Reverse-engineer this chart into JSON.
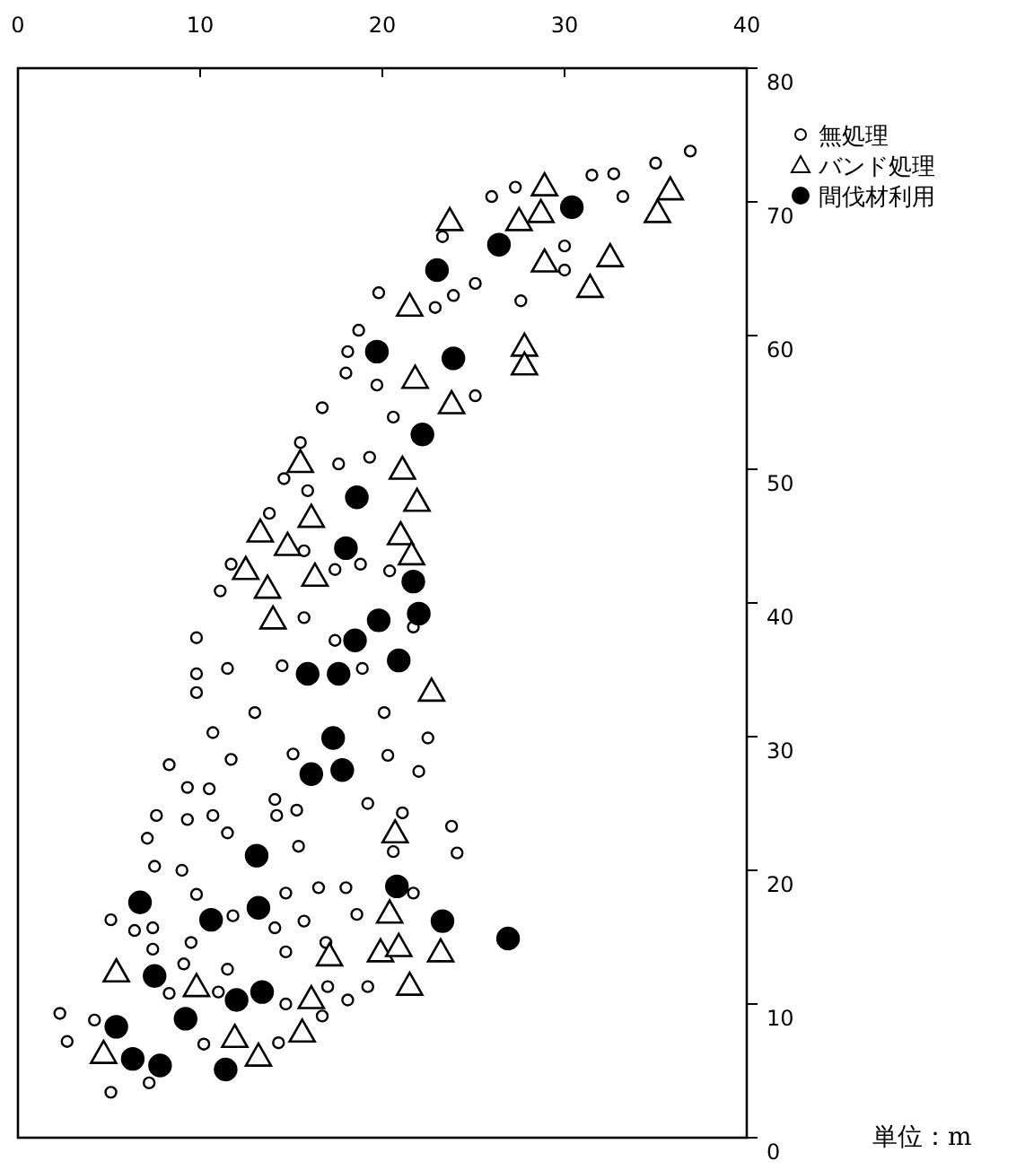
{
  "chart_data": {
    "type": "scatter",
    "xlim": [
      0,
      40
    ],
    "xticks": [
      0,
      10,
      20,
      30,
      40
    ],
    "ylim": [
      0,
      80
    ],
    "yticks": [
      0,
      10,
      20,
      30,
      40,
      50,
      60,
      70,
      80
    ],
    "legend": "top right",
    "grid": false,
    "annotations": [
      "単位：m"
    ],
    "series": [
      {
        "name": "無処理",
        "color": "#ffffff",
        "marker": "circle",
        "x": [
          36.9,
          35.0,
          31.5,
          32.7,
          33.2,
          26.0,
          27.3,
          23.3,
          30.0,
          30.0,
          25.1,
          23.9,
          22.9,
          19.8,
          27.6,
          18.7,
          18.1,
          18.0,
          19.7,
          16.7,
          20.6,
          25.1,
          15.5,
          17.6,
          19.3,
          14.6,
          15.9,
          13.8,
          15.7,
          11.7,
          17.4,
          18.8,
          20.4,
          11.1,
          15.7,
          9.8,
          17.4,
          21.7,
          9.8,
          11.5,
          14.5,
          18.9,
          9.8,
          13.0,
          20.1,
          10.7,
          22.5,
          8.3,
          11.7,
          15.1,
          20.3,
          22.0,
          9.3,
          10.5,
          14.1,
          19.2,
          7.6,
          9.3,
          10.7,
          14.2,
          15.3,
          21.1,
          7.1,
          11.5,
          23.8,
          15.4,
          20.6,
          24.1,
          7.5,
          9.0,
          9.8,
          14.7,
          16.5,
          18.0,
          21.7,
          5.1,
          6.4,
          7.4,
          11.8,
          14.1,
          15.7,
          18.6,
          7.4,
          9.5,
          16.9,
          14.7,
          9.1,
          11.5,
          8.3,
          11.0,
          14.7,
          17.0,
          18.1,
          19.2,
          16.7,
          2.3,
          4.2,
          2.7,
          10.2,
          14.3,
          7.2,
          5.1
        ],
        "values": [
          73.8,
          72.9,
          72.0,
          72.1,
          70.4,
          70.4,
          71.1,
          67.4,
          66.7,
          64.9,
          63.9,
          63.0,
          62.1,
          63.2,
          62.6,
          60.4,
          58.8,
          57.2,
          56.3,
          54.6,
          53.9,
          55.5,
          52.0,
          50.4,
          50.9,
          49.3,
          48.4,
          46.7,
          43.9,
          42.9,
          42.5,
          42.9,
          42.4,
          40.9,
          38.9,
          37.4,
          37.2,
          38.2,
          34.7,
          35.1,
          35.3,
          35.1,
          33.3,
          31.8,
          31.8,
          30.3,
          29.9,
          27.9,
          28.3,
          28.7,
          28.6,
          27.4,
          26.2,
          26.1,
          25.3,
          25.0,
          24.1,
          23.8,
          24.1,
          24.1,
          24.5,
          24.3,
          22.4,
          22.8,
          23.3,
          21.8,
          21.4,
          21.3,
          20.3,
          20.0,
          18.2,
          18.3,
          18.7,
          18.7,
          18.3,
          16.3,
          15.5,
          15.7,
          16.6,
          15.7,
          16.2,
          16.7,
          14.1,
          14.6,
          14.6,
          13.9,
          13.0,
          12.6,
          10.8,
          10.9,
          10.0,
          11.3,
          10.3,
          11.3,
          9.1,
          9.3,
          8.8,
          7.2,
          7.0,
          7.1,
          4.1,
          3.4
        ]
      },
      {
        "name": "バンド処理",
        "color": "#ffffff",
        "marker": "triangle",
        "x": [
          28.9,
          35.8,
          23.7,
          27.5,
          28.7,
          35.1,
          28.9,
          32.5,
          31.4,
          21.5,
          27.8,
          27.8,
          21.8,
          23.8,
          15.5,
          21.1,
          21.9,
          16.1,
          13.3,
          14.8,
          21.0,
          21.6,
          12.5,
          16.3,
          13.7,
          14.0,
          22.7,
          20.7,
          20.4,
          17.1,
          19.9,
          20.9,
          23.2,
          5.4,
          9.8,
          16.1,
          21.5,
          4.7,
          11.9,
          15.6,
          13.2
        ],
        "values": [
          71.2,
          70.9,
          68.6,
          68.6,
          69.2,
          69.2,
          65.5,
          65.9,
          63.6,
          62.2,
          59.2,
          57.8,
          56.8,
          54.9,
          50.5,
          50.0,
          47.6,
          46.4,
          45.3,
          44.3,
          45.1,
          43.6,
          42.5,
          42.0,
          41.1,
          38.8,
          33.4,
          22.8,
          16.8,
          13.6,
          13.9,
          14.3,
          13.9,
          12.4,
          11.3,
          10.4,
          11.4,
          6.3,
          7.5,
          7.9,
          6.1
        ]
      },
      {
        "name": "間伐材利用",
        "color": "#000000",
        "marker": "circle",
        "x": [
          30.4,
          26.4,
          23.0,
          19.7,
          23.9,
          22.2,
          18.6,
          18.0,
          21.7,
          19.8,
          22.0,
          18.5,
          15.9,
          17.6,
          20.9,
          17.3,
          16.1,
          17.8,
          13.1,
          6.7,
          10.6,
          13.2,
          20.8,
          23.3,
          26.9,
          7.5,
          12.0,
          13.4,
          5.4,
          9.2,
          6.3,
          7.8,
          11.4
        ],
        "values": [
          69.6,
          66.8,
          64.9,
          58.8,
          58.3,
          52.6,
          47.9,
          44.1,
          41.6,
          38.7,
          39.2,
          37.2,
          34.7,
          34.7,
          35.7,
          29.9,
          27.2,
          27.5,
          21.1,
          17.6,
          16.3,
          17.2,
          18.8,
          16.2,
          14.9,
          12.1,
          10.3,
          10.9,
          8.3,
          8.9,
          5.9,
          5.4,
          5.1
        ]
      }
    ]
  }
}
